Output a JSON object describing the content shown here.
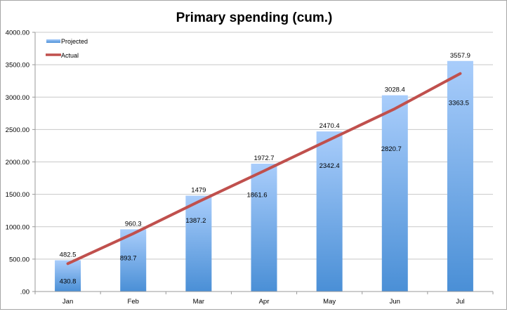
{
  "chart_data": {
    "type": "bar",
    "title": "Primary spending (cum.)",
    "xlabel": "",
    "ylabel": "",
    "categories": [
      "Jan",
      "Feb",
      "Mar",
      "Apr",
      "May",
      "Jun",
      "Jul"
    ],
    "series": [
      {
        "name": "Projected",
        "type": "bar",
        "color": "#5b9bd5",
        "values": [
          482.5,
          960.3,
          1479,
          1972.7,
          2470.4,
          3028.4,
          3557.9
        ],
        "labels": [
          "482.5",
          "960.3",
          "1479",
          "1972.7",
          "2470.4",
          "3028.4",
          "3557.9"
        ]
      },
      {
        "name": "Actual",
        "type": "line",
        "color": "#c0504d",
        "values": [
          430.8,
          893.7,
          1387.2,
          1861.6,
          2342.4,
          2820.7,
          3363.5
        ],
        "labels": [
          "430.8",
          "893.7",
          "1387.2",
          "1861.6",
          "2342.4",
          "2820.7",
          "3363.5"
        ]
      }
    ],
    "ylim": [
      0,
      4000
    ],
    "yticks": [
      ".00",
      "500.00",
      "1000.00",
      "1500.00",
      "2000.00",
      "2500.00",
      "3000.00",
      "3500.00",
      "4000.00"
    ],
    "grid": true,
    "legend_position": "top-left inside"
  },
  "legend": {
    "projected_label": "Projected",
    "actual_label": "Actual"
  },
  "colors": {
    "bar_top": "#a9cdfb",
    "bar_bottom": "#4a8fd6",
    "line": "#c0504d",
    "grid": "#c8c8c8"
  }
}
